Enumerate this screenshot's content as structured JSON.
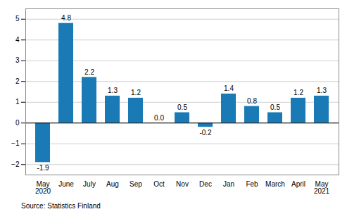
{
  "chart_data": {
    "type": "bar",
    "categories": [
      "May\n2020",
      "June",
      "July",
      "Aug",
      "Sep",
      "Oct",
      "Nov",
      "Dec",
      "Jan",
      "Feb",
      "March",
      "April",
      "May\n2021"
    ],
    "values": [
      -1.9,
      4.8,
      2.2,
      1.3,
      1.2,
      0.0,
      0.5,
      -0.2,
      1.4,
      0.8,
      0.5,
      1.2,
      1.3
    ],
    "value_labels": [
      "-1.9",
      "4.8",
      "2.2",
      "1.3",
      "1.2",
      "0.0",
      "0.5",
      "-0.2",
      "1.4",
      "0.8",
      "0.5",
      "1.2",
      "1.3"
    ],
    "color": "#1a7ab5",
    "ylim": [
      -2.5,
      5.5
    ],
    "yticks": [
      -2,
      -1,
      0,
      1,
      2,
      3,
      4,
      5
    ],
    "grid": true,
    "data_labels": true,
    "annotations": [
      "Source: Statistics Finland"
    ]
  }
}
